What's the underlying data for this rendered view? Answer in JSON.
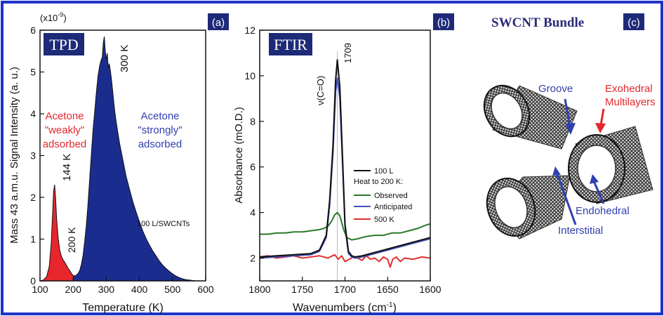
{
  "colors": {
    "border_blue": "#1f34c8",
    "navy": "#1e2a78",
    "blue_fill": "#1a2d8f",
    "red_fill": "#e8262d",
    "red_text": "#e4262c",
    "blue_text": "#3040b0",
    "green": "#2a7a2a",
    "ftir_blue": "#4050b8",
    "ftir_red": "#e03030"
  },
  "panel_a": {
    "label": "(a)",
    "badge": "TPD",
    "exponent": "(x10",
    "exponent_sup": "-9",
    "exponent_close": ")",
    "weak_line1": "Acetone",
    "weak_line2": "\"weakly\"",
    "weak_line3": "adsorbed",
    "strong_line1": "Acetone",
    "strong_line2": "\"strongly\"",
    "strong_line3": "adsorbed",
    "peak_144": "144 K",
    "peak_300": "300 K",
    "min_200": "200 K",
    "dose": "100 L/SWCNTs"
  },
  "panel_b": {
    "label": "(b)",
    "badge": "FTIR",
    "mode_label": "ν(C=O)",
    "peak_label": "1709",
    "legend": {
      "l1": "100 L",
      "heading": "Heat to 200 K:",
      "l2": "Observed",
      "l3": "Anticipated",
      "l4": "500 K"
    }
  },
  "panel_c": {
    "title": "SWCNT Bundle",
    "label": "(c)",
    "groove": "Groove",
    "exo1": "Exohedral",
    "exo2": "Multilayers",
    "endo": "Endohedral",
    "inter": "Interstitial"
  },
  "chart_data": [
    {
      "type": "area",
      "xlabel": "Temperature (K)",
      "ylabel": "Mass 43 a.m.u. Signal Intensity (a. u.)",
      "xlim": [
        100,
        600
      ],
      "ylim": [
        0,
        6
      ],
      "xticks": [
        100,
        200,
        300,
        400,
        500,
        600
      ],
      "yticks": [
        0,
        1,
        2,
        3,
        4,
        5,
        6
      ],
      "series": [
        {
          "x": [
            100,
            110,
            120,
            128,
            134,
            138,
            141,
            144,
            147,
            150,
            155,
            160,
            165,
            170,
            175,
            180,
            185,
            190,
            195,
            200,
            205,
            210,
            215,
            220,
            225,
            230,
            235,
            240,
            245,
            250,
            255,
            260,
            265,
            270,
            275,
            280,
            285,
            288,
            291,
            294,
            297,
            300,
            303,
            306,
            309,
            312,
            316,
            320,
            325,
            330,
            335,
            340,
            345,
            350,
            360,
            370,
            380,
            390,
            400,
            410,
            420,
            430,
            440,
            450,
            460,
            470,
            480,
            490,
            500,
            510,
            520,
            530,
            540,
            550,
            560,
            570,
            580,
            590,
            600
          ],
          "y": [
            0,
            0.02,
            0.1,
            0.35,
            0.9,
            1.6,
            2.15,
            2.3,
            2.0,
            1.5,
            1.0,
            0.72,
            0.58,
            0.5,
            0.44,
            0.37,
            0.3,
            0.24,
            0.18,
            0.13,
            0.12,
            0.14,
            0.18,
            0.25,
            0.4,
            0.62,
            0.95,
            1.35,
            1.85,
            2.45,
            3.05,
            3.6,
            4.05,
            4.5,
            4.9,
            5.15,
            5.3,
            5.35,
            5.7,
            5.85,
            5.5,
            5.3,
            5.45,
            5.1,
            5.2,
            5.05,
            4.8,
            4.5,
            4.1,
            3.8,
            3.55,
            3.3,
            3.1,
            2.9,
            2.5,
            2.2,
            1.9,
            1.65,
            1.42,
            1.2,
            1.02,
            0.86,
            0.72,
            0.6,
            0.48,
            0.38,
            0.3,
            0.23,
            0.17,
            0.12,
            0.08,
            0.05,
            0.03,
            0.02,
            0.01,
            0.005,
            0.002,
            0.001,
            0
          ]
        }
      ]
    },
    {
      "type": "line",
      "xlabel": "Wavenumbers (cm",
      "xlabel_sup": "-1",
      "xlabel_close": ")",
      "ylabel": "Absorbance (mO.D.)",
      "xlim": [
        1800,
        1600
      ],
      "ylim": [
        1,
        12
      ],
      "xticks": [
        1800,
        1750,
        1700,
        1650,
        1600
      ],
      "yticks": [
        2,
        4,
        6,
        8,
        10,
        12
      ],
      "series": [
        {
          "name": "100 L",
          "x": [
            1800,
            1780,
            1760,
            1740,
            1730,
            1722,
            1718,
            1714,
            1711,
            1709,
            1706,
            1703,
            1700,
            1696,
            1692,
            1688,
            1680,
            1670,
            1660,
            1650,
            1640,
            1630,
            1620,
            1610,
            1600
          ],
          "y": [
            2.05,
            2.1,
            2.15,
            2.2,
            2.35,
            3.0,
            4.5,
            7.0,
            9.8,
            10.7,
            9.5,
            6.5,
            3.5,
            2.3,
            2.1,
            2.05,
            2.1,
            2.2,
            2.3,
            2.4,
            2.5,
            2.6,
            2.7,
            2.8,
            2.9
          ]
        },
        {
          "name": "Observed",
          "x": [
            1800,
            1790,
            1780,
            1770,
            1760,
            1750,
            1740,
            1730,
            1725,
            1720,
            1716,
            1712,
            1709,
            1706,
            1702,
            1698,
            1692,
            1685,
            1675,
            1665,
            1655,
            1645,
            1635,
            1625,
            1615,
            1605,
            1600
          ],
          "y": [
            3.05,
            3.05,
            3.1,
            3.1,
            3.15,
            3.15,
            3.2,
            3.25,
            3.3,
            3.4,
            3.6,
            3.9,
            4.0,
            3.85,
            3.3,
            2.9,
            2.8,
            2.85,
            2.95,
            3.0,
            3.0,
            3.1,
            3.1,
            3.2,
            3.3,
            3.45,
            3.5
          ]
        },
        {
          "name": "Anticipated",
          "x": [
            1800,
            1780,
            1760,
            1740,
            1730,
            1722,
            1718,
            1714,
            1711,
            1709,
            1706,
            1703,
            1700,
            1696,
            1692,
            1688,
            1680,
            1670,
            1660,
            1650,
            1640,
            1630,
            1620,
            1610,
            1600
          ],
          "y": [
            2.0,
            2.05,
            2.1,
            2.15,
            2.3,
            2.9,
            4.3,
            6.7,
            9.3,
            9.9,
            9.0,
            6.2,
            3.4,
            2.2,
            2.05,
            2.0,
            2.05,
            2.15,
            2.25,
            2.35,
            2.45,
            2.55,
            2.65,
            2.75,
            2.85
          ]
        },
        {
          "name": "500 K",
          "x": [
            1800,
            1790,
            1780,
            1770,
            1760,
            1750,
            1740,
            1730,
            1720,
            1712,
            1708,
            1704,
            1700,
            1695,
            1690,
            1685,
            1680,
            1675,
            1670,
            1665,
            1660,
            1655,
            1650,
            1647,
            1644,
            1640,
            1635,
            1630,
            1620,
            1610,
            1600
          ],
          "y": [
            2.05,
            2.1,
            2.0,
            2.05,
            2.1,
            2.0,
            2.05,
            2.1,
            2.0,
            2.15,
            1.95,
            2.1,
            1.85,
            1.95,
            2.05,
            2.0,
            1.9,
            2.1,
            1.95,
            2.0,
            1.85,
            2.05,
            1.95,
            1.6,
            1.95,
            2.05,
            1.85,
            2.0,
            1.95,
            2.05,
            2.0
          ]
        }
      ]
    }
  ]
}
